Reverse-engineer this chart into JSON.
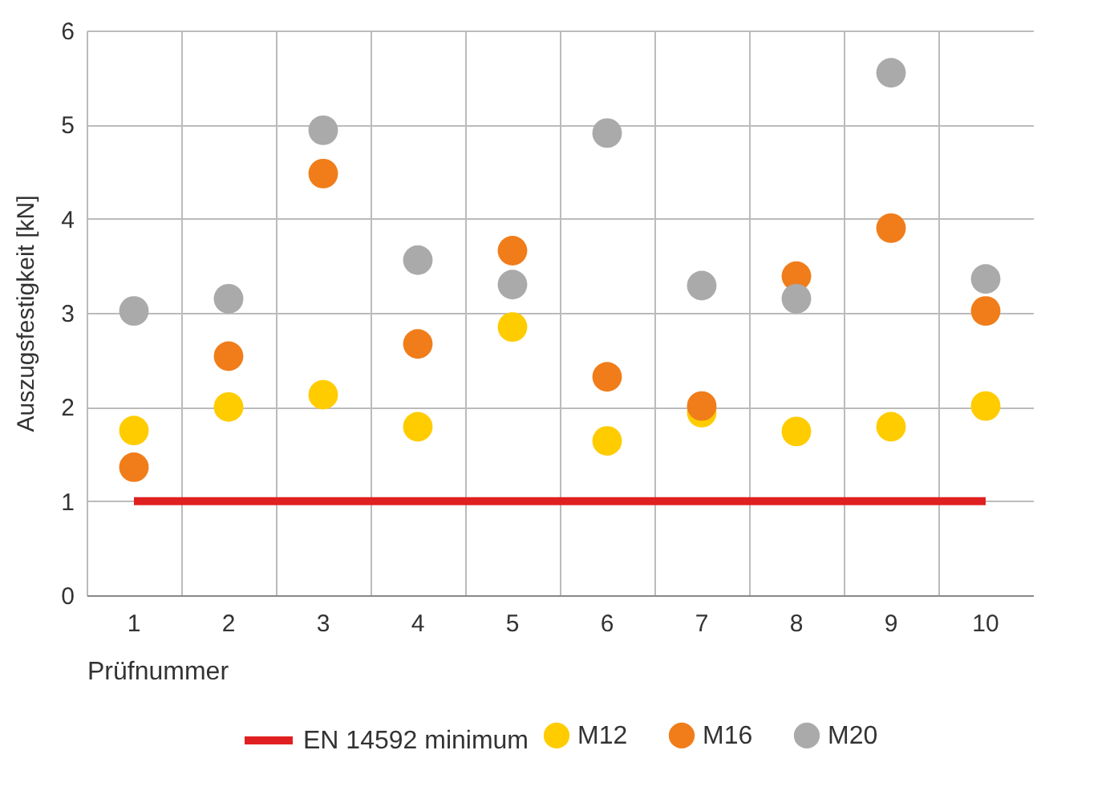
{
  "chart_data": {
    "type": "scatter",
    "xlabel": "Prüfnummer",
    "ylabel": "Auszugsfestigkeit [kN]",
    "categories": [
      "1",
      "2",
      "3",
      "4",
      "5",
      "6",
      "7",
      "8",
      "9",
      "10"
    ],
    "series": [
      {
        "name": "EN 14592 minimum",
        "type": "line",
        "marker": "none",
        "color": "#e02020",
        "values": [
          1,
          1,
          1,
          1,
          1,
          1,
          1,
          1,
          1,
          1
        ]
      },
      {
        "name": "M12",
        "color": "#ffcc00",
        "values": [
          1.75,
          2.0,
          2.13,
          1.79,
          2.85,
          1.64,
          1.94,
          1.74,
          1.79,
          2.01
        ]
      },
      {
        "name": "M16",
        "color": "#f07d1a",
        "values": [
          1.36,
          2.54,
          4.48,
          2.67,
          3.66,
          2.32,
          2.01,
          3.39,
          3.9,
          3.02
        ]
      },
      {
        "name": "M20",
        "color": "#aaaaaa",
        "values": [
          3.02,
          3.15,
          4.94,
          3.56,
          3.3,
          4.91,
          3.29,
          3.15,
          5.55,
          3.36
        ]
      }
    ],
    "ylim": [
      0,
      6
    ],
    "yticks": [
      0,
      1,
      2,
      3,
      4,
      5,
      6
    ],
    "grid": true,
    "legend": "bottom",
    "marker": "circle"
  }
}
